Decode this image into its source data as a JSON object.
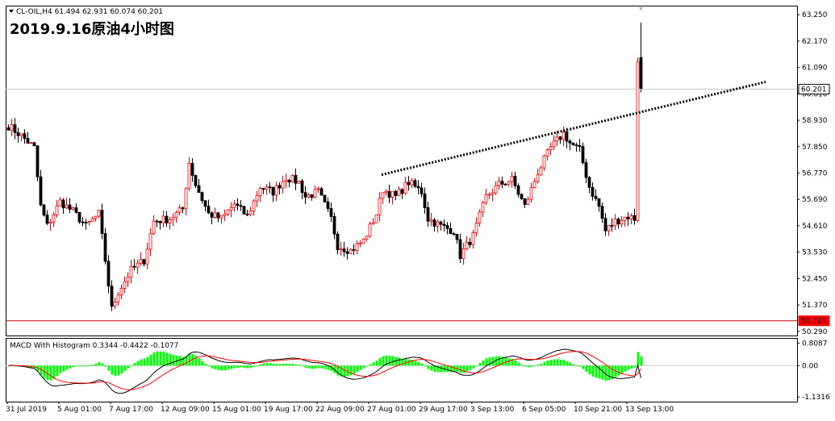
{
  "header": {
    "symbol_line": "CL-OIL,H4  61.494 62.931 60.074 60.201",
    "annotation": "2019.9.16原油4小时图"
  },
  "macd": {
    "label": "MACD With Histogram 0.3344 -0.4422 -0.1077"
  },
  "colors": {
    "up": "#ff0000",
    "down": "#000000",
    "frame": "#000000",
    "support_line": "#cc0000",
    "price_tag_bg": "#ff0000",
    "histogram_pos": "#00ff00",
    "histogram_neg": "#00ff00",
    "macd_line": "#000000",
    "signal_line": "#ff0000",
    "trend_line": "#000000",
    "current_line": "#c0c0c0"
  },
  "chart_data": [
    {
      "type": "candlestick",
      "symbol": "CL-OIL",
      "timeframe": "H4",
      "ohlc_last": {
        "open": 61.494,
        "high": 62.931,
        "low": 60.074,
        "close": 60.201
      },
      "y_ticks": [
        "63.250",
        "62.170",
        "61.090",
        "60.010",
        "58.930",
        "57.850",
        "56.770",
        "55.690",
        "54.610",
        "53.530",
        "52.450",
        "51.370",
        "50.290"
      ],
      "ylim": [
        50.12,
        63.62
      ],
      "x_ticks": [
        "31 Jul 2019",
        "5 Aug 01:00",
        "7 Aug 17:00",
        "12 Aug 09:00",
        "15 Aug 01:00",
        "19 Aug 17:00",
        "22 Aug 09:00",
        "27 Aug 01:00",
        "29 Aug 17:00",
        "3 Sep 13:00",
        "6 Sep 05:00",
        "10 Sep 21:00",
        "13 Sep 13:00"
      ],
      "price_tags": {
        "current": "60.201",
        "support": "50.723"
      },
      "horizontal_lines": {
        "current": 60.201,
        "support": 50.723
      },
      "trend_line": {
        "from": {
          "bar": 116,
          "price": 56.7
        },
        "to": {
          "bar": 235,
          "price": 60.5
        }
      },
      "price_path": [
        [
          0,
          58.7
        ],
        [
          4,
          58.3
        ],
        [
          8,
          57.8
        ],
        [
          10,
          55.4
        ],
        [
          12,
          54.6
        ],
        [
          16,
          55.6
        ],
        [
          20,
          55.2
        ],
        [
          24,
          54.6
        ],
        [
          28,
          55.1
        ],
        [
          30,
          53.2
        ],
        [
          32,
          51.2
        ],
        [
          34,
          51.9
        ],
        [
          38,
          52.8
        ],
        [
          42,
          53.2
        ],
        [
          45,
          54.8
        ],
        [
          50,
          54.9
        ],
        [
          54,
          55.3
        ],
        [
          56,
          57.2
        ],
        [
          58,
          56.3
        ],
        [
          62,
          55.1
        ],
        [
          66,
          54.9
        ],
        [
          70,
          55.5
        ],
        [
          74,
          55.0
        ],
        [
          78,
          56.2
        ],
        [
          82,
          56.0
        ],
        [
          86,
          56.6
        ],
        [
          90,
          56.4
        ],
        [
          92,
          55.8
        ],
        [
          96,
          56.0
        ],
        [
          100,
          54.9
        ],
        [
          102,
          53.8
        ],
        [
          106,
          53.6
        ],
        [
          110,
          54.0
        ],
        [
          114,
          55.1
        ],
        [
          116,
          56.1
        ],
        [
          120,
          55.8
        ],
        [
          124,
          56.4
        ],
        [
          128,
          56.0
        ],
        [
          130,
          54.9
        ],
        [
          134,
          54.6
        ],
        [
          138,
          54.4
        ],
        [
          140,
          53.4
        ],
        [
          144,
          54.2
        ],
        [
          148,
          55.8
        ],
        [
          152,
          56.3
        ],
        [
          156,
          56.5
        ],
        [
          160,
          55.4
        ],
        [
          164,
          56.8
        ],
        [
          168,
          57.8
        ],
        [
          172,
          58.4
        ],
        [
          174,
          58.0
        ],
        [
          177,
          57.7
        ],
        [
          180,
          56.2
        ],
        [
          183,
          55.4
        ],
        [
          185,
          54.4
        ],
        [
          188,
          54.8
        ],
        [
          192,
          55.0
        ],
        [
          194,
          54.9
        ],
        [
          195,
          61.4
        ],
        [
          196,
          60.201
        ]
      ]
    },
    {
      "type": "macd_histogram",
      "label": "MACD With Histogram",
      "values": {
        "histogram": 0.3344,
        "macd": -0.4422,
        "signal": -0.1077
      },
      "y_ticks": [
        "0.8087",
        "0.00",
        "-1.1316"
      ],
      "ylim": [
        -1.3,
        1.0
      ]
    }
  ]
}
